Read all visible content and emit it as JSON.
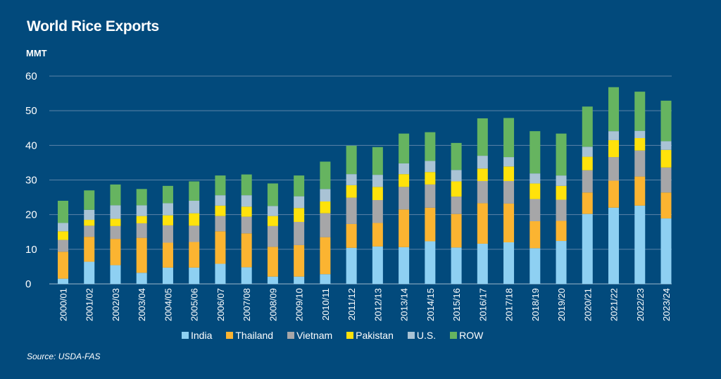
{
  "chart_data": {
    "type": "bar",
    "stacked": true,
    "title": "World Rice Exports",
    "ylabel": "MMT",
    "xlabel": "",
    "ylim": [
      0,
      60
    ],
    "yticks": [
      0,
      10,
      20,
      30,
      40,
      50,
      60
    ],
    "grid": true,
    "legend_position": "bottom",
    "source": "Source: USDA-FAS",
    "categories": [
      "2000/01",
      "2001/02",
      "2002/03",
      "2003/04",
      "2004/05",
      "2005/06",
      "2006/07",
      "2007/08",
      "2008/09",
      "2009/10",
      "2010/11",
      "2011/12",
      "2012/13",
      "2013/14",
      "2014/15",
      "2015/16",
      "2016/17",
      "2017/18",
      "2018/19",
      "2019/20",
      "2020/21",
      "2021/22",
      "2022/23",
      "2023/24"
    ],
    "series": [
      {
        "name": "India",
        "color": "#8ed0f2",
        "values": [
          1.5,
          6.4,
          5.4,
          3.2,
          4.7,
          4.7,
          5.8,
          4.8,
          2.1,
          2.1,
          2.8,
          10.4,
          10.8,
          10.6,
          12.3,
          10.5,
          11.6,
          12.0,
          10.3,
          12.4,
          20.2,
          22.0,
          22.6,
          18.9
        ]
      },
      {
        "name": "Thailand",
        "color": "#fbb431",
        "values": [
          7.8,
          7.2,
          7.6,
          10.1,
          7.2,
          7.4,
          9.4,
          9.8,
          8.6,
          9.1,
          10.7,
          6.9,
          6.8,
          10.9,
          9.7,
          9.7,
          11.7,
          11.2,
          7.8,
          5.8,
          6.2,
          7.8,
          8.4,
          7.5
        ]
      },
      {
        "name": "Vietnam",
        "color": "#a6a6a8",
        "values": [
          3.4,
          3.2,
          3.7,
          4.2,
          5.0,
          4.7,
          4.4,
          4.8,
          6.0,
          6.7,
          6.9,
          7.6,
          6.6,
          6.5,
          6.7,
          5.0,
          6.4,
          6.5,
          6.4,
          6.1,
          6.4,
          6.8,
          7.5,
          7.2
        ]
      },
      {
        "name": "Pakistan",
        "color": "#ffe20b",
        "values": [
          2.5,
          1.7,
          2.1,
          2.1,
          2.9,
          3.6,
          3.0,
          2.9,
          2.9,
          4.0,
          3.4,
          3.6,
          3.8,
          3.7,
          3.6,
          4.4,
          3.6,
          4.2,
          4.5,
          4.0,
          3.9,
          4.9,
          3.6,
          5.1
        ]
      },
      {
        "name": "U.S.",
        "color": "#a9c3d5",
        "values": [
          2.4,
          2.9,
          3.9,
          3.1,
          3.5,
          3.6,
          3.0,
          3.3,
          2.9,
          3.4,
          3.6,
          3.2,
          3.5,
          3.1,
          3.2,
          3.3,
          3.7,
          2.7,
          2.9,
          3.0,
          2.9,
          2.6,
          2.1,
          2.5
        ]
      },
      {
        "name": "ROW",
        "color": "#66b460",
        "values": [
          6.4,
          5.6,
          6.0,
          4.7,
          5.0,
          5.6,
          5.7,
          6.0,
          6.5,
          6.0,
          7.9,
          8.2,
          8.0,
          8.6,
          8.3,
          7.8,
          10.8,
          11.3,
          12.2,
          12.1,
          11.6,
          12.7,
          11.3,
          11.7
        ]
      }
    ]
  },
  "colors": {
    "background": "#024a7c",
    "gridline": "#5b84a8",
    "text": "#ffffff"
  }
}
